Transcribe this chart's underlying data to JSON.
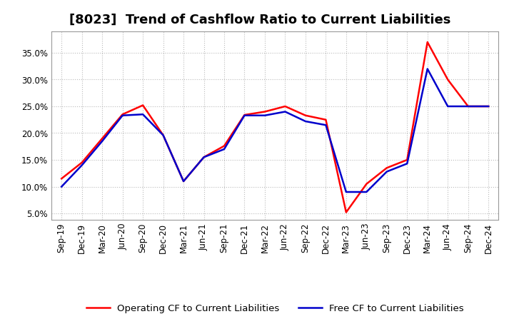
{
  "title": "[8023]  Trend of Cashflow Ratio to Current Liabilities",
  "x_labels": [
    "Sep-19",
    "Dec-19",
    "Mar-20",
    "Jun-20",
    "Sep-20",
    "Dec-20",
    "Mar-21",
    "Jun-21",
    "Sep-21",
    "Dec-21",
    "Mar-22",
    "Jun-22",
    "Sep-22",
    "Dec-22",
    "Mar-23",
    "Jun-23",
    "Sep-23",
    "Dec-23",
    "Mar-24",
    "Jun-24",
    "Sep-24",
    "Dec-24"
  ],
  "operating_cf": [
    0.115,
    0.145,
    0.19,
    0.235,
    0.252,
    0.196,
    0.11,
    0.155,
    0.176,
    0.234,
    0.24,
    0.25,
    0.233,
    0.225,
    0.052,
    0.105,
    0.135,
    0.15,
    0.37,
    0.3,
    0.25,
    0.25
  ],
  "free_cf": [
    0.1,
    0.14,
    0.185,
    0.233,
    0.235,
    0.196,
    0.11,
    0.155,
    0.17,
    0.233,
    0.233,
    0.24,
    0.222,
    0.215,
    0.09,
    0.09,
    0.128,
    0.143,
    0.32,
    0.25,
    0.25,
    0.25
  ],
  "operating_color": "#ff0000",
  "free_color": "#0000cc",
  "ylim_min": 0.038,
  "ylim_max": 0.39,
  "yticks": [
    0.05,
    0.1,
    0.15,
    0.2,
    0.25,
    0.3,
    0.35
  ],
  "background_color": "#ffffff",
  "plot_bg_color": "#ffffff",
  "grid_color": "#bbbbbb",
  "legend_operating": "Operating CF to Current Liabilities",
  "legend_free": "Free CF to Current Liabilities",
  "title_fontsize": 13,
  "axis_fontsize": 8.5,
  "legend_fontsize": 9.5,
  "line_width": 1.8
}
